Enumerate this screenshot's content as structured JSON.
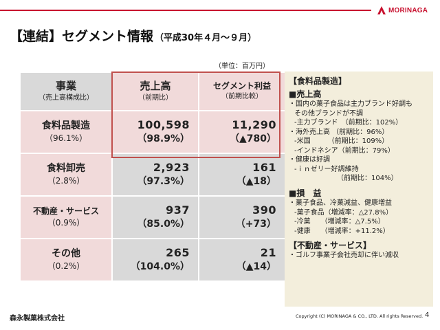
{
  "header": {
    "brand": "MORINAGA",
    "title": "【連結】セグメント情報",
    "title_sub": "（平成30年４月～９月）",
    "unit": "（単位：百万円）"
  },
  "table": {
    "columns": [
      {
        "main": "事業",
        "sub": "（売上高構成比）"
      },
      {
        "main": "売上高",
        "sub": "（前期比）"
      },
      {
        "main": "セグメント利益",
        "sub": "（前期比較）"
      }
    ],
    "rows": [
      {
        "name": "食料品製造",
        "share": "（96.1%）",
        "sales": "100,598",
        "sales_yoy": "（98.9%）",
        "profit": "11,290",
        "profit_chg": "（▲780）"
      },
      {
        "name": "食料卸売",
        "share": "（2.8%）",
        "sales": "2,923",
        "sales_yoy": "（97.3%）",
        "profit": "161",
        "profit_chg": "（▲18）"
      },
      {
        "name": "不動産・サービス",
        "share": "（0.9%）",
        "sales": "937",
        "sales_yoy": "（85.0%）",
        "profit": "390",
        "profit_chg": "（+73）"
      },
      {
        "name": "その他",
        "share": "（0.2%）",
        "sales": "265",
        "sales_yoy": "（104.0%）",
        "profit": "21",
        "profit_chg": "（▲14）"
      }
    ]
  },
  "panel": {
    "lines": [
      "【食料品製造】",
      "■売上高",
      "・国内の菓子食品は主力ブランド好調も",
      "その他ブランドが不調",
      "-主力ブランド　（前期比：102%）",
      "・海外売上高 （前期比：96%）",
      "-米国　　　（前期比：109%）",
      "-インドネシア（前期比：79%）",
      "・健康は好調",
      "-ｉｎゼリー好調維持",
      "（前期比：104%）",
      "■損　益",
      "・菓子食品、冷菓減益、健康増益",
      "-菓子食品（増減率：△27.8%）",
      "-冷菓　　（増減率：△7.5%）",
      "-健康　　（増減率：+11.2%）",
      "【不動産・サービス】",
      "・ゴルフ事業子会社売却に伴い減収"
    ]
  },
  "footer": {
    "company": "森永製菓株式会社",
    "copyright": "Copyright (C) MORINAGA & CO., LTD. All rights Reserved.",
    "page": "4"
  },
  "colors": {
    "accent": "#c8102e",
    "pink": "#f1dada",
    "gray": "#d9d9d9",
    "panel": "#f3eedc",
    "highlight": "#c0504d"
  }
}
